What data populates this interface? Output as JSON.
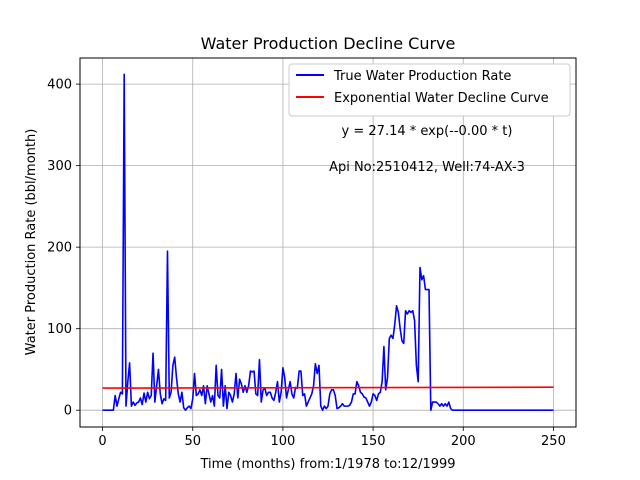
{
  "chart_data": {
    "type": "line",
    "title": "Water Production Decline Curve",
    "xlabel": "Time (months) from:1/1978 to:12/1999",
    "ylabel": "Water Production Rate (bbl/month)",
    "xlim": [
      -12.5,
      262.5
    ],
    "ylim": [
      -20.6,
      432
    ],
    "xticks": [
      0,
      50,
      100,
      150,
      200,
      250
    ],
    "yticks": [
      0,
      100,
      200,
      300,
      400
    ],
    "grid": true,
    "legend_position": "upper right",
    "annotations": [
      "y = 27.14 * exp(--0.00 * t)",
      "Api No:2510412, Well:74-AX-3"
    ],
    "series": [
      {
        "name": "True Water Production Rate",
        "color": "#0000ff",
        "points": [
          [
            0,
            0
          ],
          [
            6,
            0
          ],
          [
            7,
            18
          ],
          [
            8,
            5
          ],
          [
            9,
            14
          ],
          [
            10,
            22
          ],
          [
            11,
            20
          ],
          [
            12,
            412
          ],
          [
            13,
            5
          ],
          [
            14,
            35
          ],
          [
            15,
            58
          ],
          [
            16,
            5
          ],
          [
            17,
            10
          ],
          [
            18,
            6
          ],
          [
            19,
            9
          ],
          [
            20,
            10
          ],
          [
            21,
            15
          ],
          [
            22,
            7
          ],
          [
            23,
            21
          ],
          [
            24,
            10
          ],
          [
            25,
            22
          ],
          [
            26,
            14
          ],
          [
            27,
            18
          ],
          [
            28,
            70
          ],
          [
            29,
            10
          ],
          [
            30,
            30
          ],
          [
            31,
            50
          ],
          [
            32,
            20
          ],
          [
            33,
            8
          ],
          [
            34,
            14
          ],
          [
            35,
            12
          ],
          [
            36,
            195
          ],
          [
            37,
            15
          ],
          [
            38,
            22
          ],
          [
            39,
            55
          ],
          [
            40,
            65
          ],
          [
            41,
            40
          ],
          [
            42,
            20
          ],
          [
            43,
            10
          ],
          [
            44,
            22
          ],
          [
            45,
            3
          ],
          [
            46,
            0
          ],
          [
            47,
            3
          ],
          [
            48,
            5
          ],
          [
            49,
            2
          ],
          [
            50,
            14
          ],
          [
            51,
            45
          ],
          [
            52,
            18
          ],
          [
            53,
            20
          ],
          [
            54,
            25
          ],
          [
            55,
            18
          ],
          [
            56,
            30
          ],
          [
            57,
            8
          ],
          [
            58,
            30
          ],
          [
            59,
            20
          ],
          [
            60,
            10
          ],
          [
            61,
            18
          ],
          [
            62,
            5
          ],
          [
            63,
            55
          ],
          [
            64,
            18
          ],
          [
            65,
            15
          ],
          [
            66,
            50
          ],
          [
            67,
            5
          ],
          [
            68,
            30
          ],
          [
            69,
            2
          ],
          [
            70,
            22
          ],
          [
            71,
            18
          ],
          [
            72,
            10
          ],
          [
            73,
            20
          ],
          [
            74,
            45
          ],
          [
            75,
            15
          ],
          [
            76,
            38
          ],
          [
            77,
            32
          ],
          [
            78,
            22
          ],
          [
            79,
            30
          ],
          [
            80,
            22
          ],
          [
            81,
            30
          ],
          [
            82,
            48
          ],
          [
            83,
            47
          ],
          [
            84,
            48
          ],
          [
            85,
            20
          ],
          [
            86,
            18
          ],
          [
            87,
            62
          ],
          [
            88,
            10
          ],
          [
            89,
            25
          ],
          [
            90,
            27
          ],
          [
            91,
            18
          ],
          [
            92,
            22
          ],
          [
            93,
            22
          ],
          [
            94,
            15
          ],
          [
            95,
            12
          ],
          [
            96,
            22
          ],
          [
            97,
            35
          ],
          [
            98,
            10
          ],
          [
            99,
            22
          ],
          [
            100,
            52
          ],
          [
            101,
            40
          ],
          [
            102,
            15
          ],
          [
            103,
            25
          ],
          [
            104,
            35
          ],
          [
            105,
            20
          ],
          [
            106,
            15
          ],
          [
            107,
            28
          ],
          [
            108,
            27
          ],
          [
            109,
            48
          ],
          [
            110,
            48
          ],
          [
            111,
            18
          ],
          [
            112,
            20
          ],
          [
            113,
            5
          ],
          [
            114,
            10
          ],
          [
            115,
            15
          ],
          [
            116,
            20
          ],
          [
            117,
            30
          ],
          [
            118,
            57
          ],
          [
            119,
            45
          ],
          [
            120,
            55
          ],
          [
            121,
            5
          ],
          [
            122,
            0
          ],
          [
            123,
            5
          ],
          [
            124,
            2
          ],
          [
            125,
            5
          ],
          [
            126,
            20
          ],
          [
            127,
            25
          ],
          [
            128,
            25
          ],
          [
            129,
            18
          ],
          [
            130,
            2
          ],
          [
            131,
            3
          ],
          [
            132,
            5
          ],
          [
            133,
            8
          ],
          [
            134,
            5
          ],
          [
            135,
            5
          ],
          [
            136,
            5
          ],
          [
            137,
            6
          ],
          [
            138,
            10
          ],
          [
            139,
            20
          ],
          [
            140,
            20
          ],
          [
            141,
            35
          ],
          [
            142,
            30
          ],
          [
            143,
            22
          ],
          [
            144,
            20
          ],
          [
            145,
            16
          ],
          [
            146,
            15
          ],
          [
            147,
            10
          ],
          [
            148,
            5
          ],
          [
            149,
            10
          ],
          [
            150,
            20
          ],
          [
            151,
            18
          ],
          [
            152,
            12
          ],
          [
            153,
            20
          ],
          [
            154,
            22
          ],
          [
            155,
            35
          ],
          [
            156,
            78
          ],
          [
            157,
            25
          ],
          [
            158,
            40
          ],
          [
            159,
            88
          ],
          [
            160,
            92
          ],
          [
            161,
            88
          ],
          [
            162,
            105
          ],
          [
            163,
            128
          ],
          [
            164,
            120
          ],
          [
            165,
            100
          ],
          [
            166,
            85
          ],
          [
            167,
            82
          ],
          [
            168,
            122
          ],
          [
            169,
            118
          ],
          [
            170,
            122
          ],
          [
            171,
            120
          ],
          [
            172,
            122
          ],
          [
            173,
            110
          ],
          [
            174,
            55
          ],
          [
            175,
            35
          ],
          [
            176,
            175
          ],
          [
            177,
            160
          ],
          [
            178,
            165
          ],
          [
            179,
            148
          ],
          [
            180,
            148
          ],
          [
            181,
            148
          ],
          [
            182,
            0
          ],
          [
            183,
            10
          ],
          [
            184,
            10
          ],
          [
            185,
            10
          ],
          [
            186,
            8
          ],
          [
            187,
            5
          ],
          [
            188,
            8
          ],
          [
            189,
            5
          ],
          [
            190,
            8
          ],
          [
            191,
            5
          ],
          [
            192,
            10
          ],
          [
            193,
            2
          ],
          [
            194,
            0
          ],
          [
            195,
            0
          ],
          [
            196,
            0
          ],
          [
            197,
            0
          ],
          [
            198,
            0
          ],
          [
            199,
            0
          ],
          [
            200,
            0
          ],
          [
            210,
            0
          ],
          [
            220,
            0
          ],
          [
            230,
            0
          ],
          [
            240,
            0
          ],
          [
            250,
            0
          ]
        ]
      },
      {
        "name": "Exponential Water Decline Curve",
        "color": "#ff0000",
        "points": [
          [
            0,
            27.14
          ],
          [
            250,
            28.2
          ]
        ]
      }
    ]
  }
}
